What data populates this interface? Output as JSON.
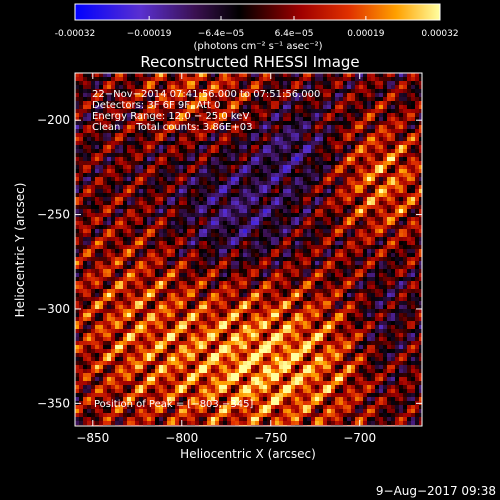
{
  "chart_data": {
    "type": "heatmap",
    "title": "Reconstructed RHESSI Image",
    "xlabel": "Heliocentric X (arcsec)",
    "ylabel": "Heliocentric Y (arcsec)",
    "xlim": [
      -860,
      -665
    ],
    "ylim": [
      -362,
      -175
    ],
    "x_ticks": [
      -850,
      -800,
      -750,
      -700
    ],
    "x_tick_labels": [
      "−850",
      "−800",
      "−750",
      "−700"
    ],
    "y_ticks": [
      -350,
      -300,
      -250,
      -200
    ],
    "y_tick_labels": [
      "−350",
      "−300",
      "−250",
      "−200"
    ],
    "colorbar": {
      "range": [
        -0.00032,
        0.00032
      ],
      "ticks": [
        -0.00032,
        -0.00019,
        -6.4e-05,
        6.4e-05,
        0.00019,
        0.00032
      ],
      "tick_labels": [
        "-0.00032",
        "−0.00019",
        "−6.4e−05",
        "6.4e−05",
        "0.00019",
        "0.00032"
      ],
      "unit_label": "(photons cm⁻² s⁻¹ asec⁻²)",
      "colors": [
        "#0000ff",
        "#6a2ccf",
        "#400040",
        "#000000",
        "#8a0000",
        "#e03000",
        "#ff9a00",
        "#ffff90"
      ]
    },
    "annotations": [
      "22−Nov−2014 07:41:56.000 to 07:51:56.000",
      "Detectors: 3F 6F 9F, Att 0",
      "Energy Range: 12.0 − 25.0 keV",
      "Clean     Total counts: 3.86E+03"
    ],
    "peak_label": "Position of Peak = [−803,−345]",
    "peak": {
      "x": -803,
      "y": -345
    },
    "grid": false
  },
  "footer": {
    "date": "9−Aug−2017 09:38"
  }
}
